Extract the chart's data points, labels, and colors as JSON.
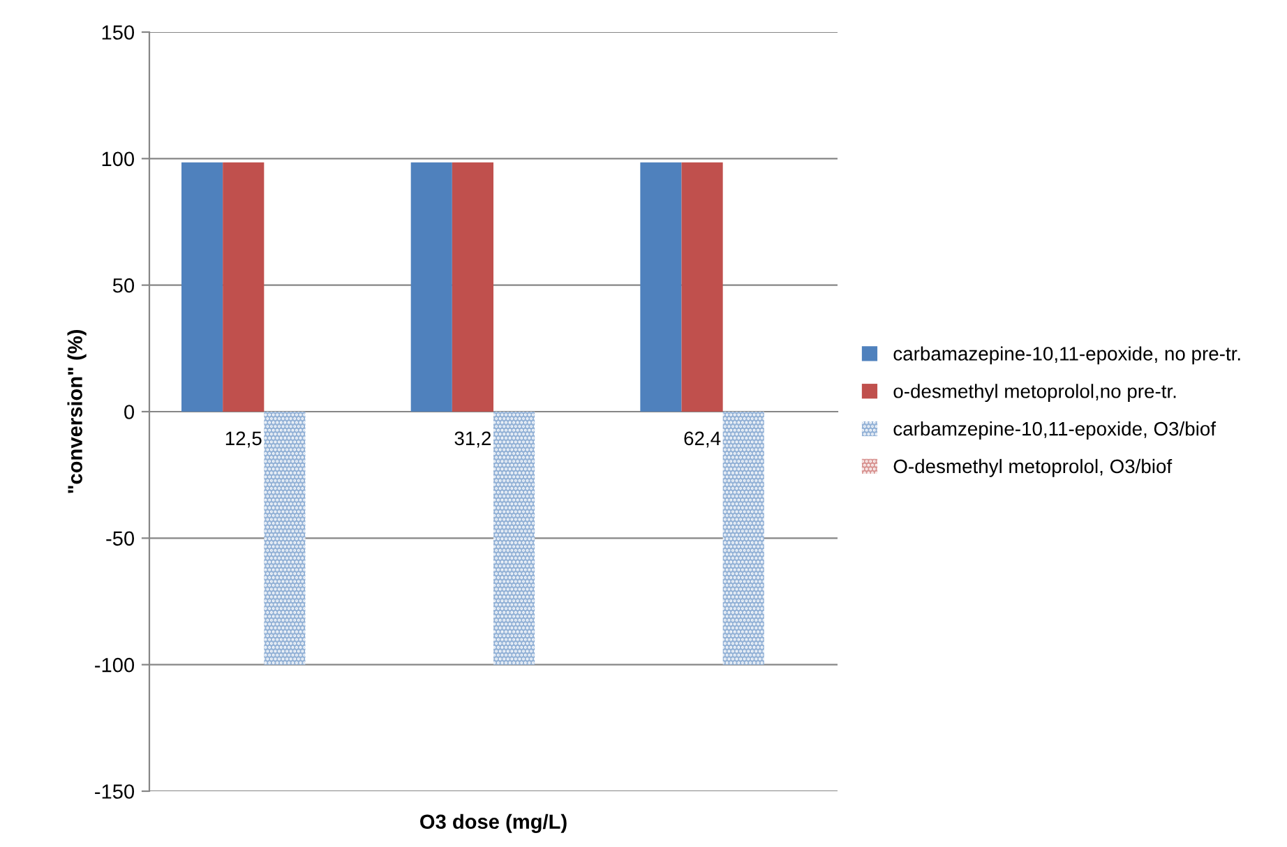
{
  "chart_data": {
    "type": "bar",
    "xlabel": "O3 dose (mg/L)",
    "ylabel": "\"conversion\" (%)",
    "categories": [
      "12,5",
      "31,2",
      "62,4"
    ],
    "series": [
      {
        "name": "carbamazepine-10,11-epoxide, no pre-tr.",
        "color": "#4f81bd",
        "values": [
          98.5,
          98.5,
          98.5
        ]
      },
      {
        "name": "o-desmethyl metoprolol,no pre-tr.",
        "color": "#c0504d",
        "values": [
          98.5,
          98.5,
          98.5
        ]
      },
      {
        "name": "carbamzepine-10,11-epoxide, O3/biof",
        "color": "#95b3d7",
        "values": [
          -100,
          -100,
          -100
        ]
      },
      {
        "name": "O-desmethyl metoprolol, O3/biof",
        "color": "#d99694",
        "values": [
          null,
          null,
          null
        ]
      }
    ],
    "ylim": [
      -150,
      150
    ],
    "yticks": [
      -150,
      -100,
      -50,
      0,
      50,
      100,
      150
    ],
    "grid": "y",
    "legend": "right"
  }
}
